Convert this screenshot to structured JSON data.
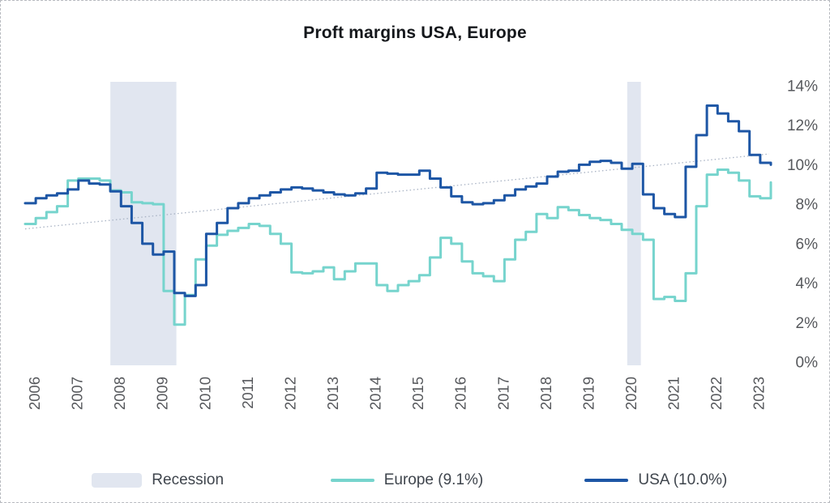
{
  "page": {
    "title": "Proft margins USA, Europe"
  },
  "chart_data": {
    "type": "line",
    "title": "Proft margins USA, Europe",
    "x_start": 2006.0,
    "x_step": 0.25,
    "x_unit": "quarter",
    "xlim": [
      2006.0,
      2023.5
    ],
    "ylim": [
      0,
      14
    ],
    "y_ticks": [
      0,
      2,
      4,
      6,
      8,
      10,
      12,
      14
    ],
    "y_tick_suffix": "%",
    "x_tick_years": [
      2006,
      2007,
      2008,
      2009,
      2010,
      2011,
      2012,
      2013,
      2014,
      2015,
      2016,
      2017,
      2018,
      2019,
      2020,
      2021,
      2022,
      2023
    ],
    "grid": false,
    "legend_position": "bottom",
    "trend_line": {
      "style": "dotted",
      "start_value": 6.75,
      "end_value": 10.55
    },
    "recession_bands": [
      {
        "from": 2008.0,
        "to": 2009.55
      },
      {
        "from": 2020.13,
        "to": 2020.45
      }
    ],
    "series": [
      {
        "name": "Europe (9.1%)",
        "latest_value": 9.1,
        "color": "#76d4cd",
        "values": [
          7.0,
          7.3,
          7.6,
          7.9,
          9.2,
          9.3,
          9.3,
          9.2,
          8.7,
          8.6,
          8.1,
          8.05,
          8.0,
          3.6,
          1.9,
          3.4,
          5.2,
          5.9,
          6.45,
          6.65,
          6.8,
          7.0,
          6.9,
          6.5,
          6.0,
          4.55,
          4.5,
          4.6,
          4.8,
          4.2,
          4.6,
          5.0,
          5.0,
          3.9,
          3.6,
          3.9,
          4.1,
          4.4,
          5.3,
          6.3,
          6.0,
          5.1,
          4.5,
          4.35,
          4.1,
          5.2,
          6.2,
          6.6,
          7.5,
          7.3,
          7.85,
          7.7,
          7.45,
          7.3,
          7.2,
          7.0,
          6.7,
          6.5,
          6.2,
          3.2,
          3.3,
          3.1,
          4.5,
          7.9,
          9.5,
          9.75,
          9.6,
          9.2,
          8.4,
          8.3,
          9.1
        ]
      },
      {
        "name": "USA (10.0%)",
        "latest_value": 10.0,
        "color": "#1d56a5",
        "values": [
          8.05,
          8.3,
          8.45,
          8.55,
          8.75,
          9.2,
          9.05,
          9.0,
          8.65,
          7.9,
          7.05,
          6.0,
          5.45,
          5.6,
          3.5,
          3.35,
          3.9,
          6.5,
          7.05,
          7.8,
          8.05,
          8.3,
          8.45,
          8.6,
          8.75,
          8.85,
          8.8,
          8.7,
          8.6,
          8.5,
          8.45,
          8.55,
          8.8,
          9.6,
          9.55,
          9.5,
          9.5,
          9.7,
          9.3,
          8.85,
          8.4,
          8.1,
          8.0,
          8.05,
          8.2,
          8.45,
          8.75,
          8.9,
          9.05,
          9.4,
          9.65,
          9.7,
          10.0,
          10.15,
          10.2,
          10.1,
          9.8,
          10.05,
          8.5,
          7.8,
          7.5,
          7.35,
          9.9,
          11.5,
          13.0,
          12.6,
          12.2,
          11.7,
          10.5,
          10.1,
          10.0
        ]
      }
    ]
  },
  "legend": {
    "recession_label": "Recession",
    "europe_label": "Europe (9.1%)",
    "usa_label": "USA (10.0%)"
  },
  "colors": {
    "recession_band": "#e1e6f0",
    "trend_line": "#a9b3c4",
    "europe_line": "#76d4cd",
    "usa_line": "#1d56a5",
    "axis_text": "#56585c",
    "legend_text": "#3f454d",
    "title_text": "#14171b"
  }
}
